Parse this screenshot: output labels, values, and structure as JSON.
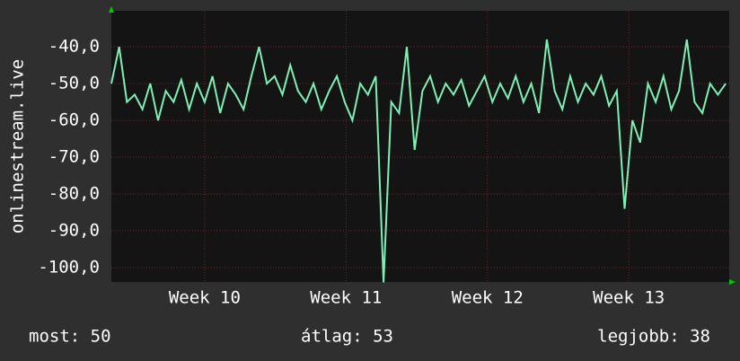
{
  "chart_data": {
    "type": "line",
    "y_label": "onlinestream.live",
    "x": [
      9.34,
      9.395,
      9.45,
      9.505,
      9.56,
      9.615,
      9.67,
      9.725,
      9.78,
      9.835,
      9.89,
      9.945,
      10.0,
      10.055,
      10.11,
      10.165,
      10.22,
      10.275,
      10.33,
      10.385,
      10.44,
      10.495,
      10.55,
      10.605,
      10.66,
      10.715,
      10.77,
      10.825,
      10.88,
      10.935,
      10.99,
      11.045,
      11.1,
      11.155,
      11.21,
      11.265,
      11.32,
      11.375,
      11.43,
      11.485,
      11.54,
      11.595,
      11.65,
      11.705,
      11.76,
      11.815,
      11.87,
      11.925,
      11.98,
      12.035,
      12.09,
      12.145,
      12.2,
      12.255,
      12.31,
      12.365,
      12.42,
      12.475,
      12.53,
      12.585,
      12.64,
      12.695,
      12.75,
      12.805,
      12.86,
      12.915,
      12.97,
      13.025,
      13.08,
      13.135,
      13.19,
      13.245,
      13.3,
      13.355,
      13.41,
      13.465,
      13.52,
      13.575,
      13.63,
      13.685
    ],
    "series": [
      {
        "color": "#7ff0b4",
        "values": [
          -50,
          -40,
          -55,
          -53,
          -57,
          -50,
          -60,
          -52,
          -55,
          -49,
          -57,
          -50,
          -55,
          -48,
          -58,
          -50,
          -53,
          -57,
          -48,
          -40,
          -50,
          -48,
          -53,
          -45,
          -52,
          -55,
          -50,
          -57,
          -52,
          -48,
          -55,
          -60,
          -50,
          -53,
          -48,
          -104,
          -55,
          -58,
          -40,
          -68,
          -52,
          -48,
          -55,
          -50,
          -53,
          -49,
          -56,
          -52,
          -48,
          -55,
          -50,
          -54,
          -48,
          -55,
          -50,
          -58,
          -38,
          -52,
          -57,
          -48,
          -55,
          -50,
          -53,
          -48,
          -56,
          -52,
          -84,
          -60,
          -66,
          -50,
          -55,
          -48,
          -57,
          -52,
          -38,
          -55,
          -58,
          -50,
          -53,
          -50
        ]
      }
    ],
    "xlim": [
      9.34,
      13.71
    ],
    "xticks": [
      {
        "value": 10,
        "label": "Week 10"
      },
      {
        "value": 11,
        "label": "Week 11"
      },
      {
        "value": 12,
        "label": "Week 12"
      },
      {
        "value": 13,
        "label": "Week 13"
      }
    ],
    "ylim": [
      -103.9,
      -30.2
    ],
    "yticks": [
      {
        "value": -40,
        "label": "-40,0"
      },
      {
        "value": -50,
        "label": "-50,0"
      },
      {
        "value": -60,
        "label": "-60,0"
      },
      {
        "value": -70,
        "label": "-70,0"
      },
      {
        "value": -80,
        "label": "-80,0"
      },
      {
        "value": -90,
        "label": "-90,0"
      },
      {
        "value": -100,
        "label": "-100,0"
      }
    ],
    "grid": true,
    "stats": [
      "most: 50",
      "átlag: 53",
      "legjobb: 38"
    ]
  }
}
